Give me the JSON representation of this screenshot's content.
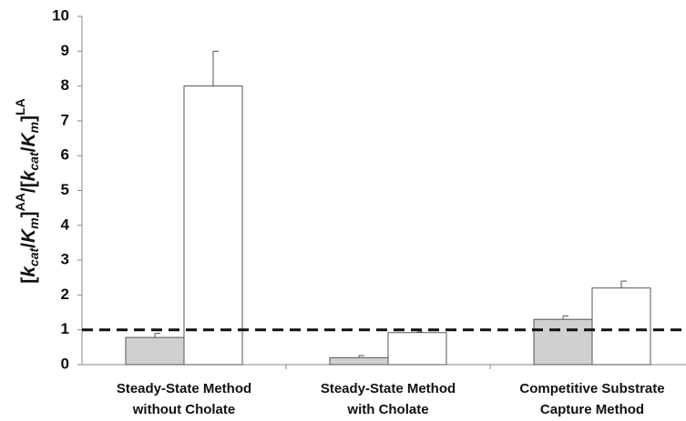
{
  "chart_data": {
    "type": "bar",
    "y_label": [
      "[",
      "k",
      "cat",
      "/",
      "K",
      "m",
      "]",
      "AA",
      "/[",
      "k",
      "cat",
      "/",
      "K",
      "m",
      "]",
      "LA"
    ],
    "categories": [
      [
        "Steady-State Method",
        "without Cholate"
      ],
      [
        "Steady-State Method",
        "with Cholate"
      ],
      [
        "Competitive Substrate",
        "Capture Method"
      ]
    ],
    "series": [
      {
        "color": "#d0d0d0",
        "values": [
          0.78,
          0.2,
          1.3
        ],
        "errors": [
          0.12,
          0.06,
          0.1
        ]
      },
      {
        "color": "#ffffff",
        "values": [
          8.0,
          0.92,
          2.2
        ],
        "errors": [
          1.0,
          0.02,
          0.2
        ]
      }
    ],
    "reference_line": 1,
    "ylim": [
      0,
      10
    ],
    "yticks": [
      0,
      1,
      2,
      3,
      4,
      5,
      6,
      7,
      8,
      9,
      10
    ]
  }
}
